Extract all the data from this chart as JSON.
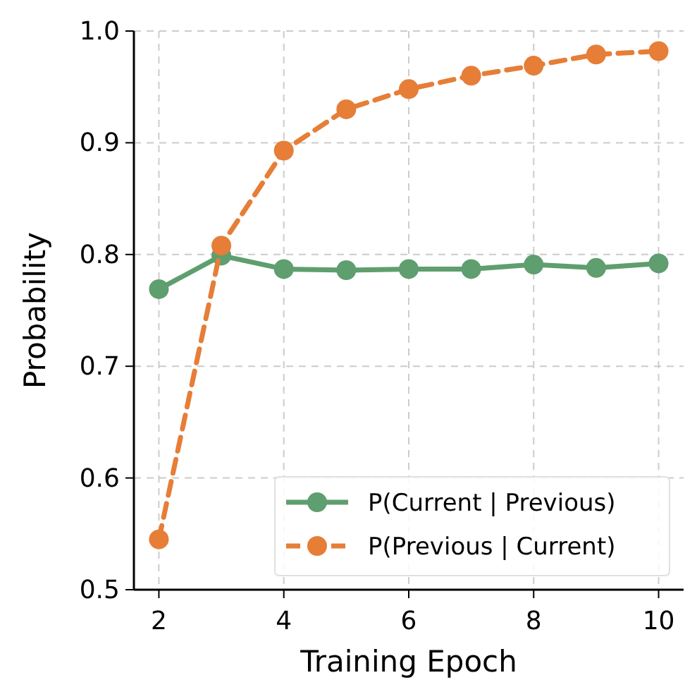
{
  "chart_data": {
    "type": "line",
    "xlabel": "Training Epoch",
    "ylabel": "Probability",
    "x": [
      2,
      3,
      4,
      5,
      6,
      7,
      8,
      9,
      10
    ],
    "series": [
      {
        "name": "P(Current | Previous)",
        "color": "#5f9e6e",
        "line_style": "solid",
        "values": [
          0.769,
          0.799,
          0.787,
          0.786,
          0.787,
          0.787,
          0.791,
          0.788,
          0.792
        ]
      },
      {
        "name": "P(Previous | Current)",
        "color": "#e67e37",
        "line_style": "dashed",
        "values": [
          0.545,
          0.808,
          0.893,
          0.93,
          0.948,
          0.96,
          0.969,
          0.979,
          0.982
        ]
      }
    ],
    "xlim": [
      1.6,
      10.4
    ],
    "xticks": [
      2,
      4,
      6,
      8,
      10
    ],
    "ylim": [
      0.5,
      1.0
    ],
    "yticks": [
      0.5,
      0.6,
      0.7,
      0.8,
      0.9,
      {
        "value": 1.0,
        "label": "1.0"
      }
    ],
    "grid": true,
    "legend": "bottom right",
    "marker": "circle"
  }
}
